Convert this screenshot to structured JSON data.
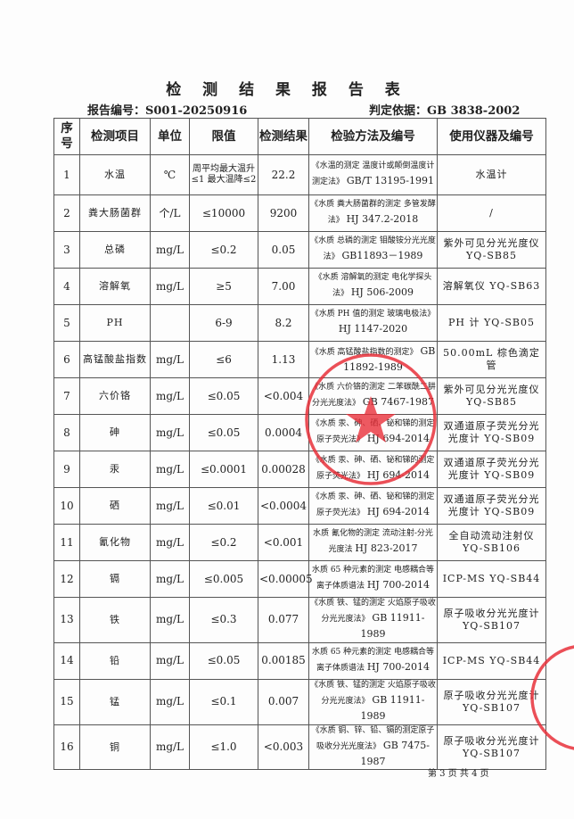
{
  "title": "检 测 结 果 报 告 表",
  "report_no": "报告编号：S001-20250916",
  "basis": "判定依据：GB 3838-2002",
  "headers": [
    "序号",
    "检测项目",
    "单位",
    "限值",
    "检测结果",
    "检验方法及编号",
    "使用仪器及编号"
  ],
  "rows": [
    {
      "no": "1",
      "item": "水温",
      "unit": "℃",
      "limit": "周平均最大温升≤1 最大温降≤2",
      "result": "22.2",
      "method1": "《水温的测定 温度计或颠倒温度计测定法》",
      "method2": "GB/T 13195-1991",
      "instrument": "水温计"
    },
    {
      "no": "2",
      "item": "粪大肠菌群",
      "unit": "个/L",
      "limit": "≤10000",
      "result": "9200",
      "method1": "《水质 粪大肠菌群的测定 多管发酵法》",
      "method2": "HJ 347.2-2018",
      "instrument": "/"
    },
    {
      "no": "3",
      "item": "总磷",
      "unit": "mg/L",
      "limit": "≤0.2",
      "result": "0.05",
      "method1": "《水质 总磷的测定 钼酸铵分光光度法》",
      "method2": "GB11893－1989",
      "instrument": "紫外可见分光光度仪 YQ-SB85"
    },
    {
      "no": "4",
      "item": "溶解氧",
      "unit": "mg/L",
      "limit": "≥5",
      "result": "7.00",
      "method1": "《水质 溶解氧的测定 电化学探头法》",
      "method2": "HJ 506-2009",
      "instrument": "溶解氧仪 YQ-SB63"
    },
    {
      "no": "5",
      "item": "PH",
      "unit": "",
      "limit": "6-9",
      "result": "8.2",
      "method1": "《水质 PH 值的测定 玻璃电极法》",
      "method2": "HJ 1147-2020",
      "instrument": "PH 计 YQ-SB05"
    },
    {
      "no": "6",
      "item": "高锰酸盐指数",
      "unit": "mg/L",
      "limit": "≤6",
      "result": "1.13",
      "method1": "《水质 高锰酸盐指数的测定》",
      "method2": "GB 11892-1989",
      "instrument": "50.00mL 棕色滴定管"
    },
    {
      "no": "7",
      "item": "六价铬",
      "unit": "mg/L",
      "limit": "≤0.05",
      "result": "<0.004",
      "method1": "《水质 六价铬的测定 二苯碳酰二肼分光光度法》",
      "method2": "GB 7467-1987",
      "instrument": "紫外可见分光光度仪 YQ-SB85"
    },
    {
      "no": "8",
      "item": "砷",
      "unit": "mg/L",
      "limit": "≤0.05",
      "result": "0.0004",
      "method1": "《水质 汞、砷、硒、铋和锑的测定 原子荧光法》",
      "method2": "HJ 694-2014",
      "instrument": "双通道原子荧光分光光度计 YQ-SB09"
    },
    {
      "no": "9",
      "item": "汞",
      "unit": "mg/L",
      "limit": "≤0.0001",
      "result": "0.00028",
      "method1": "《水质 汞、砷、硒、铋和锑的测定 原子荧光法》",
      "method2": "HJ 694-2014",
      "instrument": "双通道原子荧光分光光度计 YQ-SB09"
    },
    {
      "no": "10",
      "item": "硒",
      "unit": "mg/L",
      "limit": "≤0.01",
      "result": "<0.0004",
      "method1": "《水质 汞、砷、硒、铋和锑的测定 原子荧光法》",
      "method2": "HJ 694-2014",
      "instrument": "双通道原子荧光分光光度计 YQ-SB09"
    },
    {
      "no": "11",
      "item": "氰化物",
      "unit": "mg/L",
      "limit": "≤0.2",
      "result": "<0.001",
      "method1": "水质 氰化物的测定 流动注射-分光光度法",
      "method2": "HJ 823-2017",
      "instrument": "全自动流动注射仪 YQ-SB106"
    },
    {
      "no": "12",
      "item": "镉",
      "unit": "mg/L",
      "limit": "≤0.005",
      "result": "<0.00005",
      "method1": "水质 65 种元素的测定 电感耦合等离子体质谱法",
      "method2": "HJ 700-2014",
      "instrument": "ICP-MS YQ-SB44"
    },
    {
      "no": "13",
      "item": "铁",
      "unit": "mg/L",
      "limit": "≤0.3",
      "result": "0.077",
      "method1": "《水质 铁、锰的测定 火焰原子吸收分光光度法》",
      "method2": "GB 11911-1989",
      "instrument": "原子吸收分光光度计 YQ-SB107"
    },
    {
      "no": "14",
      "item": "铅",
      "unit": "mg/L",
      "limit": "≤0.05",
      "result": "0.00185",
      "method1": "水质 65 种元素的测定 电感耦合等离子体质谱法",
      "method2": "HJ 700-2014",
      "instrument": "ICP-MS YQ-SB44"
    },
    {
      "no": "15",
      "item": "锰",
      "unit": "mg/L",
      "limit": "≤0.1",
      "result": "0.007",
      "method1": "《水质 铁、锰的测定 火焰原子吸收分光光度法》",
      "method2": "GB 11911-1989",
      "instrument": "原子吸收分光光度计 YQ-SB107"
    },
    {
      "no": "16",
      "item": "铜",
      "unit": "mg/L",
      "limit": "≤1.0",
      "result": "<0.003",
      "method1": "《水质 铜、锌、铅、镉的测定原子吸收分光光度法》",
      "method2": "GB 7475-1987",
      "instrument": "原子吸收分光光度计 YQ-SB107"
    }
  ],
  "stamp_text": "检验检测专用章",
  "footer": "第 3 页 共 4 页",
  "colors": {
    "stamp": "#e8303a",
    "border": "#555555"
  }
}
